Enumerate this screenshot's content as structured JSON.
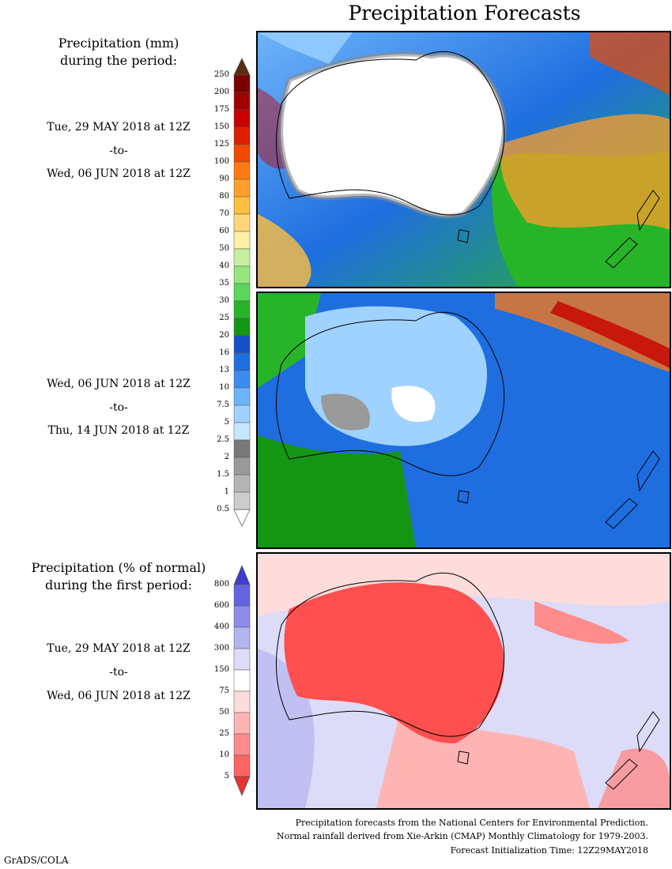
{
  "title": "Precipitation Forecasts",
  "upper_legend": {
    "heading_line1": "Precipitation (mm)",
    "heading_line2": "during the period:",
    "labels": [
      "250",
      "200",
      "175",
      "150",
      "125",
      "100",
      "90",
      "80",
      "70",
      "60",
      "50",
      "40",
      "35",
      "30",
      "25",
      "20",
      "16",
      "13",
      "10",
      "7.5",
      "5",
      "2.5",
      "2",
      "1.5",
      "1",
      "0.5"
    ],
    "colors": [
      "#5a2c10",
      "#7a0000",
      "#a00000",
      "#c80000",
      "#e01e00",
      "#f04a00",
      "#ff7a10",
      "#ff9e2a",
      "#ffbe3e",
      "#ffd77a",
      "#fff0a6",
      "#c6f0a0",
      "#96e680",
      "#5ad65a",
      "#28b428",
      "#149614",
      "#1450c8",
      "#1e6ee0",
      "#3c8cf0",
      "#6eb4fa",
      "#a0d2ff",
      "#c4e8ff",
      "#787878",
      "#9a9a9a",
      "#b4b4b4",
      "#cccccc",
      "#ffffff"
    ]
  },
  "period1": {
    "start": "Tue, 29 MAY 2018 at 12Z",
    "to": "-to-",
    "end": "Wed, 06 JUN 2018 at 12Z"
  },
  "period2": {
    "start": "Wed, 06 JUN 2018 at 12Z",
    "to": "-to-",
    "end": "Thu, 14 JUN 2018 at 12Z"
  },
  "lower_legend": {
    "heading_line1": "Precipitation (% of normal)",
    "heading_line2": "during the first period:",
    "labels": [
      "800",
      "600",
      "400",
      "300",
      "150",
      "75",
      "50",
      "25",
      "10",
      "5"
    ],
    "colors": [
      "#3c3cd2",
      "#6464e0",
      "#8c8ce8",
      "#b4b4f0",
      "#dcdcf8",
      "#ffffff",
      "#ffdcdc",
      "#ffb4b4",
      "#ff8c8c",
      "#ff6464",
      "#e63232"
    ]
  },
  "period3": {
    "start": "Tue, 29 MAY 2018 at 12Z",
    "to": "-to-",
    "end": "Wed, 06 JUN 2018 at 12Z"
  },
  "footer": {
    "line1": "Precipitation forecasts from the National Centers for Environmental Prediction.",
    "line2": "Normal rainfall derived from Xie-Arkin (CMAP) Monthly Climatology for 1979-2003.",
    "line3": "Forecast Initialization Time: 12Z29MAY2018"
  },
  "credit": "GrADS/COLA"
}
